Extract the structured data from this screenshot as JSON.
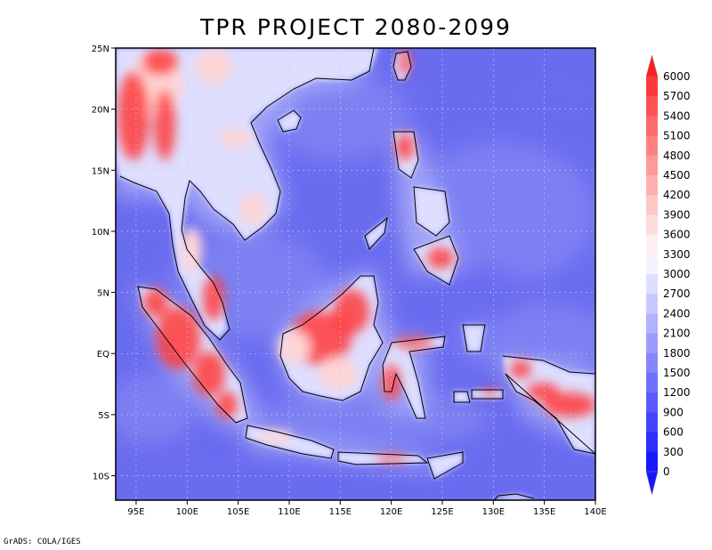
{
  "title": "TPR PROJECT 2080-2099",
  "footer": "GrADS: COLA/IGES",
  "lon_ticks": [
    "95E",
    "100E",
    "105E",
    "110E",
    "115E",
    "120E",
    "125E",
    "130E",
    "135E",
    "140E"
  ],
  "lon_values": [
    95,
    100,
    105,
    110,
    115,
    120,
    125,
    130,
    135,
    140
  ],
  "lat_ticks": [
    "25N",
    "20N",
    "15N",
    "10N",
    "5N",
    "EQ",
    "5S",
    "10S"
  ],
  "lat_values": [
    25,
    20,
    15,
    10,
    5,
    0,
    -5,
    -10
  ],
  "extent": {
    "lon_min": 93,
    "lon_max": 140,
    "lat_min": -12,
    "lat_max": 25
  },
  "colorbar": {
    "levels": [
      "6000",
      "5700",
      "5400",
      "5100",
      "4800",
      "4500",
      "4200",
      "3900",
      "3600",
      "3300",
      "3000",
      "2700",
      "2400",
      "2100",
      "1800",
      "1500",
      "1200",
      "900",
      "600",
      "300",
      "0"
    ],
    "colors": [
      "#ff1f1f",
      "#ff3a3a",
      "#ff5252",
      "#ff6a6a",
      "#ff8282",
      "#ff9a9a",
      "#ffb0b0",
      "#ffc6c6",
      "#ffdcdc",
      "#fff0f0",
      "#f4f4ff",
      "#dedeff",
      "#c8c8ff",
      "#b2b2ff",
      "#9c9cff",
      "#8686ff",
      "#7070ff",
      "#5a5aff",
      "#4444ff",
      "#2e2eff",
      "#1818ff"
    ]
  },
  "colors": {
    "ocean_far": "#6a6cf0",
    "ocean_near": "#7d80f2",
    "ocean_coast": "#a7aaf7",
    "land_low": "#dedeff",
    "land_mid": "#ffd6d6",
    "land_high": "#ff3a3a",
    "coastline": "#000000",
    "grid": "#c8c8f0"
  }
}
